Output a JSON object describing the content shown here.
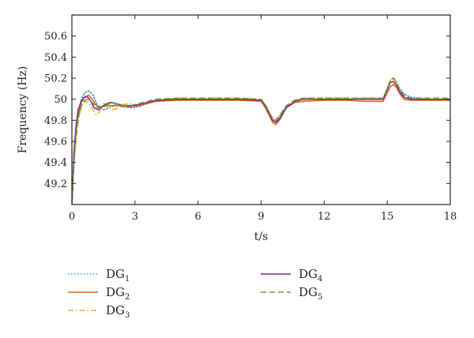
{
  "chart_data": {
    "type": "line",
    "xlabel": "t/s",
    "ylabel": "Frequency (Hz)",
    "xlim": [
      0,
      18
    ],
    "ylim": [
      49.0,
      50.8
    ],
    "xticks": [
      0,
      3,
      6,
      9,
      12,
      15,
      18
    ],
    "yticks": [
      49.2,
      49.4,
      49.6,
      49.8,
      50,
      50.2,
      50.4,
      50.6
    ],
    "ytick_labels": [
      "49.2",
      "49.4",
      "49.6",
      "49.8",
      "50",
      "50.2",
      "50.4",
      "50.6"
    ],
    "grid": false,
    "legend_placement": "below",
    "series": [
      {
        "name": "DG",
        "subscript": "1",
        "color": "#3b87c4",
        "dash": "dotted",
        "x": [
          0,
          0.1,
          0.2,
          0.3,
          0.45,
          0.6,
          0.8,
          1.0,
          1.2,
          1.5,
          1.8,
          2.1,
          2.4,
          2.8,
          3.2,
          3.6,
          4.0,
          5.0,
          6.0,
          7.0,
          8.0,
          9.0,
          9.2,
          9.4,
          9.55,
          9.7,
          9.9,
          10.2,
          10.6,
          11.0,
          12.0,
          13.0,
          14.0,
          14.8,
          15.0,
          15.15,
          15.3,
          15.45,
          15.6,
          15.8,
          16.1,
          16.5,
          17.0,
          18.0
        ],
        "y": [
          49.0,
          49.45,
          49.7,
          49.87,
          50.0,
          50.06,
          50.08,
          50.04,
          49.95,
          49.9,
          49.92,
          49.95,
          49.93,
          49.92,
          49.93,
          49.96,
          49.99,
          50.0,
          50.0,
          50.0,
          50.0,
          49.99,
          49.94,
          49.87,
          49.81,
          49.79,
          49.84,
          49.93,
          49.98,
          50.0,
          50.0,
          50.0,
          50.01,
          50.0,
          50.1,
          50.18,
          50.2,
          50.16,
          50.1,
          50.05,
          50.02,
          50.01,
          50.0,
          50.0
        ]
      },
      {
        "name": "DG",
        "subscript": "2",
        "color": "#e2621f",
        "dash": "solid",
        "x": [
          0,
          0.1,
          0.2,
          0.3,
          0.45,
          0.6,
          0.8,
          1.0,
          1.2,
          1.5,
          1.8,
          2.1,
          2.4,
          2.8,
          3.2,
          3.6,
          4.0,
          5.0,
          6.0,
          7.0,
          8.0,
          9.0,
          9.2,
          9.4,
          9.55,
          9.7,
          9.9,
          10.2,
          10.6,
          11.0,
          12.0,
          13.0,
          14.0,
          14.8,
          15.0,
          15.15,
          15.3,
          15.45,
          15.6,
          15.8,
          16.1,
          16.5,
          17.0,
          18.0
        ],
        "y": [
          49.0,
          49.45,
          49.7,
          49.85,
          49.97,
          50.02,
          50.04,
          49.99,
          49.93,
          49.93,
          49.94,
          49.94,
          49.93,
          49.93,
          49.94,
          49.96,
          49.98,
          49.99,
          49.99,
          49.99,
          49.99,
          49.98,
          49.92,
          49.84,
          49.78,
          49.76,
          49.81,
          49.92,
          49.97,
          49.98,
          49.99,
          49.99,
          49.98,
          49.98,
          50.06,
          50.12,
          50.14,
          50.11,
          50.05,
          50.0,
          49.99,
          49.99,
          49.99,
          49.99
        ]
      },
      {
        "name": "DG",
        "subscript": "3",
        "color": "#e8b520",
        "dash": "dashdot",
        "x": [
          0,
          0.1,
          0.2,
          0.3,
          0.45,
          0.6,
          0.8,
          1.0,
          1.15,
          1.3,
          1.5,
          1.7,
          1.9,
          2.1,
          2.4,
          2.8,
          3.2,
          3.6,
          4.0,
          5.0,
          6.0,
          7.0,
          8.0,
          9.0,
          9.2,
          9.4,
          9.55,
          9.7,
          9.9,
          10.2,
          10.6,
          11.0,
          12.0,
          13.0,
          14.0,
          14.8,
          15.0,
          15.15,
          15.3,
          15.45,
          15.6,
          15.8,
          16.1,
          16.5,
          17.0,
          18.0
        ],
        "y": [
          49.0,
          49.4,
          49.62,
          49.8,
          49.93,
          49.98,
          49.97,
          49.9,
          49.85,
          49.88,
          49.96,
          49.95,
          49.9,
          49.91,
          49.95,
          49.96,
          49.94,
          49.97,
          50.0,
          50.01,
          50.01,
          50.01,
          50.01,
          50.0,
          49.95,
          49.87,
          49.81,
          49.8,
          49.85,
          49.94,
          49.99,
          50.01,
          50.01,
          50.01,
          50.01,
          50.01,
          50.1,
          50.19,
          50.21,
          50.15,
          50.07,
          50.02,
          50.0,
          50.0,
          50.0,
          50.0
        ]
      },
      {
        "name": "DG",
        "subscript": "4",
        "color": "#7b2d8e",
        "dash": "solid",
        "x": [
          0,
          0.1,
          0.2,
          0.3,
          0.45,
          0.6,
          0.75,
          0.9,
          1.05,
          1.25,
          1.5,
          1.8,
          2.1,
          2.4,
          2.8,
          3.2,
          3.6,
          4.0,
          5.0,
          6.0,
          7.0,
          8.0,
          9.0,
          9.2,
          9.4,
          9.55,
          9.7,
          9.9,
          10.2,
          10.6,
          11.0,
          12.0,
          13.0,
          14.0,
          14.8,
          15.0,
          15.15,
          15.3,
          15.45,
          15.6,
          15.8,
          16.1,
          16.5,
          17.0,
          18.0
        ],
        "y": [
          49.0,
          49.5,
          49.75,
          49.9,
          49.98,
          50.02,
          50.02,
          49.98,
          49.92,
          49.9,
          49.94,
          49.97,
          49.96,
          49.94,
          49.94,
          49.95,
          49.97,
          49.99,
          50.0,
          50.0,
          50.0,
          50.0,
          49.99,
          49.94,
          49.86,
          49.8,
          49.78,
          49.82,
          49.92,
          49.98,
          50.0,
          50.0,
          50.0,
          50.0,
          50.0,
          50.09,
          50.16,
          50.17,
          50.13,
          50.07,
          50.02,
          50.0,
          50.0,
          50.0,
          50.0
        ]
      },
      {
        "name": "DG",
        "subscript": "5",
        "color": "#5aaa2f",
        "dash": "dashed",
        "x": [
          0,
          0.1,
          0.2,
          0.3,
          0.45,
          0.6,
          0.8,
          1.0,
          1.2,
          1.5,
          1.8,
          2.1,
          2.4,
          2.8,
          3.2,
          3.6,
          4.0,
          5.0,
          6.0,
          7.0,
          8.0,
          9.0,
          9.2,
          9.4,
          9.55,
          9.7,
          9.9,
          10.2,
          10.6,
          11.0,
          12.0,
          13.0,
          14.0,
          14.8,
          15.0,
          15.15,
          15.3,
          15.45,
          15.6,
          15.8,
          16.1,
          16.5,
          17.0,
          18.0
        ],
        "y": [
          49.0,
          49.4,
          49.65,
          49.82,
          49.94,
          49.99,
          50.0,
          49.96,
          49.92,
          49.93,
          49.96,
          49.96,
          49.94,
          49.94,
          49.96,
          49.98,
          50.0,
          50.01,
          50.01,
          50.01,
          50.01,
          50.0,
          49.95,
          49.87,
          49.82,
          49.8,
          49.85,
          49.94,
          49.99,
          50.01,
          50.01,
          50.01,
          50.01,
          50.01,
          50.1,
          50.18,
          50.2,
          50.16,
          50.09,
          50.04,
          50.01,
          50.01,
          50.01,
          50.01
        ]
      }
    ]
  }
}
